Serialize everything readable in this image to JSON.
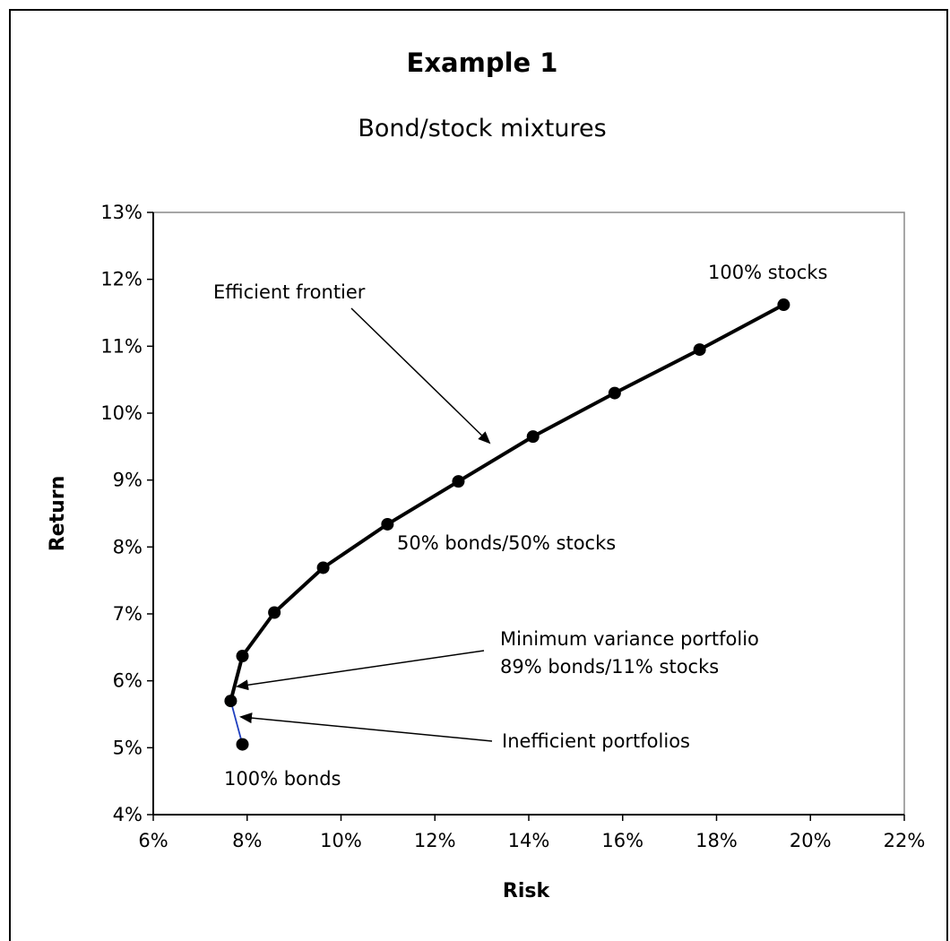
{
  "chart_data": {
    "type": "line",
    "title": "Example 1",
    "subtitle": "Bond/stock mixtures",
    "xlabel": "Risk",
    "ylabel": "Return",
    "xlim": [
      0.06,
      0.22
    ],
    "ylim": [
      0.04,
      0.13
    ],
    "x_ticks": [
      0.06,
      0.08,
      0.1,
      0.12,
      0.14,
      0.16,
      0.18,
      0.2,
      0.22
    ],
    "x_tick_labels": [
      "6%",
      "8%",
      "10%",
      "12%",
      "14%",
      "16%",
      "18%",
      "20%",
      "22%"
    ],
    "y_ticks": [
      0.04,
      0.05,
      0.06,
      0.07,
      0.08,
      0.09,
      0.1,
      0.11,
      0.12,
      0.13
    ],
    "y_tick_labels": [
      "4%",
      "5%",
      "6%",
      "7%",
      "8%",
      "9%",
      "10%",
      "11%",
      "12%",
      "13%"
    ],
    "grid": false,
    "legend": "none",
    "series": [
      {
        "color": "#000000",
        "inefficient_color": "#1f3fbf",
        "x": [
          0.079,
          0.0765,
          0.079,
          0.0858,
          0.0962,
          0.1099,
          0.125,
          0.1409,
          0.1583,
          0.1764,
          0.1943
        ],
        "y": [
          0.0505,
          0.057,
          0.0637,
          0.0702,
          0.0769,
          0.0834,
          0.0898,
          0.0965,
          0.103,
          0.1095,
          0.1162
        ]
      }
    ],
    "annotations": {
      "efficient_frontier": "Efficient frontier",
      "stocks_100": "100% stocks",
      "mix_50_50": "50% bonds/50% stocks",
      "min_variance_line1": "Minimum variance portfolio",
      "min_variance_line2": "89% bonds/11% stocks",
      "inefficient": "Inefficient portfolios",
      "bonds_100": "100% bonds"
    }
  }
}
